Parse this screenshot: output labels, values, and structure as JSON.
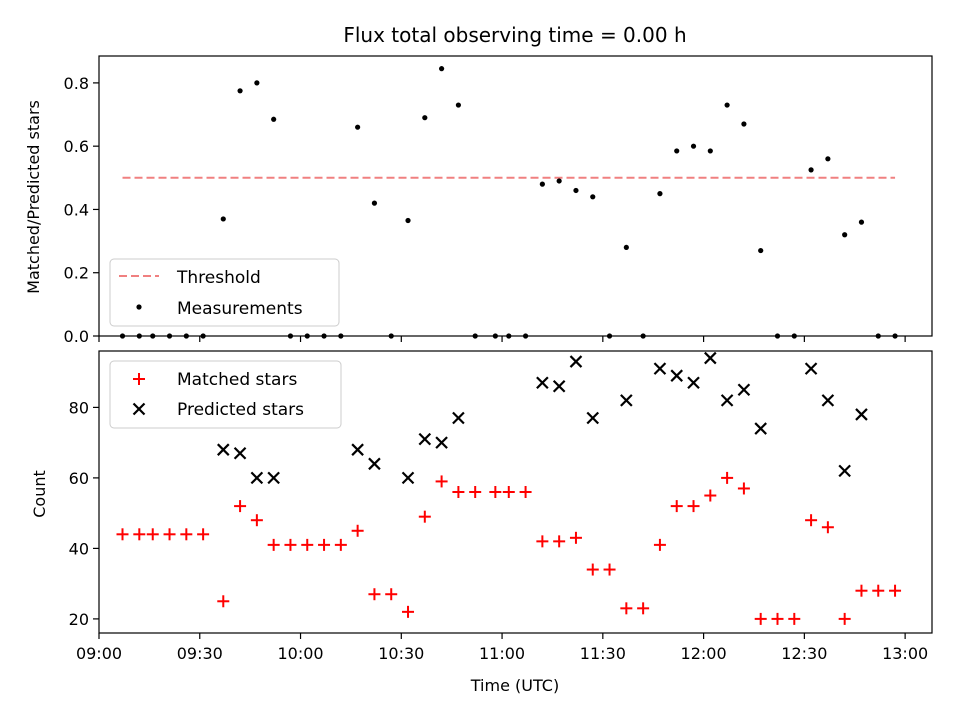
{
  "chart_data": [
    {
      "type": "scatter",
      "title": "Flux total observing time = 0.00 h",
      "xlabel": "",
      "ylabel": "Matched/Predicted stars",
      "ylim": [
        0,
        0.885
      ],
      "yticks": [
        "0.0",
        "0.2",
        "0.4",
        "0.6",
        "0.8"
      ],
      "legend": {
        "placement": "lower-left",
        "entries": [
          "Threshold",
          "Measurements"
        ]
      },
      "threshold": {
        "name": "Threshold",
        "value": 0.5,
        "x_range": [
          "09:07",
          "12:57"
        ],
        "color": "#f08080"
      },
      "series": [
        {
          "name": "Measurements",
          "color": "#000000",
          "x": [
            "09:07",
            "09:12",
            "09:16",
            "09:21",
            "09:26",
            "09:31",
            "09:37",
            "09:42",
            "09:47",
            "09:52",
            "09:57",
            "10:02",
            "10:07",
            "10:12",
            "10:17",
            "10:22",
            "10:27",
            "10:32",
            "10:37",
            "10:42",
            "10:47",
            "10:52",
            "10:58",
            "11:02",
            "11:07",
            "11:12",
            "11:17",
            "11:22",
            "11:27",
            "11:32",
            "11:37",
            "11:42",
            "11:47",
            "11:52",
            "11:57",
            "12:02",
            "12:07",
            "12:12",
            "12:17",
            "12:22",
            "12:27",
            "12:32",
            "12:37",
            "12:42",
            "12:47",
            "12:52",
            "12:57"
          ],
          "y": [
            0,
            0,
            0,
            0,
            0,
            0,
            0.37,
            0.775,
            0.8,
            0.685,
            0,
            0,
            0,
            0,
            0.66,
            0.42,
            0,
            0.365,
            0.69,
            0.845,
            0.73,
            0,
            0,
            0,
            0,
            0.48,
            0.49,
            0.46,
            0.44,
            0,
            0.28,
            0,
            0.45,
            0.585,
            0.6,
            0.585,
            0.73,
            0.67,
            0.27,
            0,
            0,
            0.525,
            0.56,
            0.32,
            0.36,
            0,
            0
          ]
        }
      ]
    },
    {
      "type": "scatter",
      "title": "",
      "xlabel": "Time (UTC)",
      "ylabel": "Count",
      "ylim": [
        16,
        96
      ],
      "yticks": [
        "20",
        "40",
        "60",
        "80"
      ],
      "xlim": [
        "09:00",
        "13:08"
      ],
      "xticks": [
        "09:00",
        "09:30",
        "10:00",
        "10:30",
        "11:00",
        "11:30",
        "12:00",
        "12:30",
        "13:00"
      ],
      "legend": {
        "placement": "upper-left",
        "entries": [
          "Matched stars",
          "Predicted stars"
        ]
      },
      "series": [
        {
          "name": "Matched stars",
          "marker": "plus",
          "color": "#ff0000",
          "x": [
            "09:07",
            "09:12",
            "09:16",
            "09:21",
            "09:26",
            "09:31",
            "09:37",
            "09:42",
            "09:47",
            "09:52",
            "09:57",
            "10:02",
            "10:07",
            "10:12",
            "10:17",
            "10:22",
            "10:27",
            "10:32",
            "10:37",
            "10:42",
            "10:47",
            "10:52",
            "10:58",
            "11:02",
            "11:07",
            "11:12",
            "11:17",
            "11:22",
            "11:27",
            "11:32",
            "11:37",
            "11:42",
            "11:47",
            "11:52",
            "11:57",
            "12:02",
            "12:07",
            "12:12",
            "12:17",
            "12:22",
            "12:27",
            "12:32",
            "12:37",
            "12:42",
            "12:47",
            "12:52",
            "12:57"
          ],
          "y": [
            44,
            44,
            44,
            44,
            44,
            44,
            25,
            52,
            48,
            41,
            41,
            41,
            41,
            41,
            45,
            27,
            27,
            22,
            49,
            59,
            56,
            56,
            56,
            56,
            56,
            42,
            42,
            43,
            34,
            34,
            23,
            23,
            41,
            52,
            52,
            55,
            60,
            57,
            20,
            20,
            20,
            48,
            46,
            20,
            28,
            28,
            28
          ]
        },
        {
          "name": "Predicted stars",
          "marker": "x",
          "color": "#000000",
          "x": [
            "09:37",
            "09:42",
            "09:47",
            "09:52",
            "10:17",
            "10:22",
            "10:32",
            "10:37",
            "10:42",
            "10:47",
            "11:12",
            "11:17",
            "11:22",
            "11:27",
            "11:37",
            "11:47",
            "11:52",
            "11:57",
            "12:02",
            "12:07",
            "12:12",
            "12:17",
            "12:32",
            "12:37",
            "12:42",
            "12:47"
          ],
          "y": [
            68,
            67,
            60,
            60,
            68,
            64,
            60,
            71,
            70,
            77,
            87,
            86,
            93,
            77,
            82,
            91,
            89,
            87,
            94,
            82,
            85,
            74,
            91,
            82,
            62,
            78
          ]
        }
      ]
    }
  ]
}
